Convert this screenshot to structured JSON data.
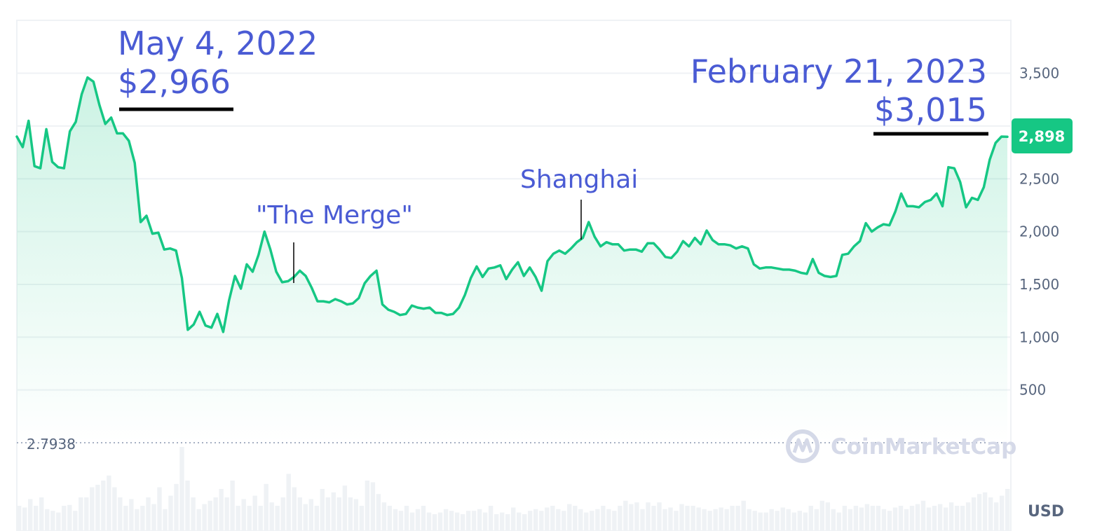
{
  "chart_data": {
    "type": "area",
    "xlabel": "",
    "ylabel": "",
    "currency_label": "USD",
    "ylim": [
      0,
      4000
    ],
    "yticks": [
      "3,500",
      "3,000",
      "2,500",
      "2,000",
      "1,500",
      "1,000",
      "500"
    ],
    "ytick_values": [
      3500,
      3000,
      2500,
      2000,
      1500,
      1000,
      500
    ],
    "grid": true,
    "current_price_badge": "2,898",
    "current_price_value": 2898,
    "volume_reference_label": "2.7938",
    "watermark": "CoinMarketCap",
    "line_color": "#16c784",
    "annotation_color": "#4a5bd4",
    "annotations": [
      {
        "line1": "May 4, 2022",
        "line2": "$2,966"
      },
      {
        "line1": "\"The Merge\"",
        "line2": ""
      },
      {
        "line1": "Shanghai",
        "line2": ""
      },
      {
        "line1": "February 21, 2023",
        "line2": "$3,015"
      }
    ],
    "series": [
      {
        "values": [
          2900,
          2800,
          3050,
          2620,
          2600,
          2970,
          2660,
          2610,
          2600,
          2950,
          3040,
          3300,
          3460,
          3420,
          3200,
          3020,
          3080,
          2930,
          2930,
          2860,
          2650,
          2090,
          2150,
          1980,
          1990,
          1830,
          1840,
          1820,
          1560,
          1070,
          1120,
          1240,
          1110,
          1090,
          1220,
          1050,
          1350,
          1580,
          1460,
          1690,
          1620,
          1780,
          2000,
          1830,
          1620,
          1520,
          1530,
          1570,
          1630,
          1580,
          1470,
          1340,
          1340,
          1330,
          1360,
          1340,
          1310,
          1320,
          1370,
          1510,
          1580,
          1630,
          1310,
          1260,
          1240,
          1210,
          1220,
          1300,
          1280,
          1270,
          1280,
          1230,
          1230,
          1210,
          1220,
          1280,
          1400,
          1560,
          1670,
          1570,
          1650,
          1660,
          1680,
          1550,
          1640,
          1710,
          1580,
          1660,
          1570,
          1440,
          1720,
          1790,
          1820,
          1790,
          1840,
          1900,
          1940,
          2090,
          1950,
          1860,
          1900,
          1880,
          1880,
          1820,
          1830,
          1830,
          1810,
          1890,
          1890,
          1830,
          1760,
          1750,
          1810,
          1910,
          1860,
          1940,
          1880,
          2010,
          1920,
          1880,
          1880,
          1870,
          1840,
          1860,
          1840,
          1690,
          1650,
          1660,
          1660,
          1650,
          1640,
          1640,
          1630,
          1610,
          1600,
          1740,
          1610,
          1580,
          1570,
          1580,
          1780,
          1790,
          1860,
          1910,
          2080,
          2000,
          2040,
          2070,
          2060,
          2190,
          2360,
          2240,
          2240,
          2230,
          2280,
          2300,
          2360,
          2240,
          2610,
          2600,
          2470,
          2230,
          2320,
          2300,
          2420,
          2680,
          2840,
          2900,
          2898
        ]
      }
    ],
    "volume_bars": [
      0.3,
      0.28,
      0.38,
      0.3,
      0.4,
      0.26,
      0.24,
      0.22,
      0.3,
      0.31,
      0.24,
      0.4,
      0.4,
      0.52,
      0.55,
      0.6,
      0.66,
      0.52,
      0.4,
      0.3,
      0.38,
      0.26,
      0.3,
      0.4,
      0.32,
      0.52,
      0.26,
      0.42,
      0.56,
      1.0,
      0.6,
      0.4,
      0.26,
      0.32,
      0.36,
      0.4,
      0.5,
      0.4,
      0.6,
      0.3,
      0.38,
      0.3,
      0.42,
      0.3,
      0.56,
      0.34,
      0.3,
      0.4,
      0.68,
      0.52,
      0.4,
      0.32,
      0.38,
      0.3,
      0.5,
      0.4,
      0.46,
      0.4,
      0.54,
      0.4,
      0.38,
      0.3,
      0.6,
      0.58,
      0.44,
      0.34,
      0.3,
      0.26,
      0.24,
      0.3,
      0.22,
      0.26,
      0.3,
      0.22,
      0.2,
      0.22,
      0.26,
      0.24,
      0.22,
      0.2,
      0.24,
      0.24,
      0.26,
      0.22,
      0.3,
      0.2,
      0.22,
      0.2,
      0.28,
      0.22,
      0.2,
      0.24,
      0.26,
      0.24,
      0.28,
      0.3,
      0.26,
      0.24,
      0.32,
      0.3,
      0.26,
      0.22,
      0.24,
      0.26,
      0.3,
      0.26,
      0.24,
      0.3,
      0.36,
      0.32,
      0.34,
      0.26,
      0.34,
      0.3,
      0.34,
      0.26,
      0.28,
      0.24,
      0.32,
      0.3,
      0.3,
      0.28,
      0.26,
      0.24,
      0.26,
      0.28,
      0.26,
      0.3,
      0.3,
      0.36,
      0.26,
      0.24,
      0.22,
      0.22,
      0.26,
      0.24,
      0.28,
      0.26,
      0.22,
      0.24,
      0.22,
      0.3,
      0.26,
      0.36,
      0.34,
      0.26,
      0.22,
      0.3,
      0.26,
      0.3,
      0.28,
      0.32,
      0.3,
      0.3,
      0.26,
      0.24,
      0.28,
      0.3,
      0.26,
      0.3,
      0.32,
      0.36,
      0.28,
      0.3,
      0.32,
      0.28,
      0.34,
      0.3,
      0.3,
      0.34,
      0.4,
      0.44,
      0.46,
      0.4,
      0.34,
      0.42,
      0.5
    ]
  }
}
